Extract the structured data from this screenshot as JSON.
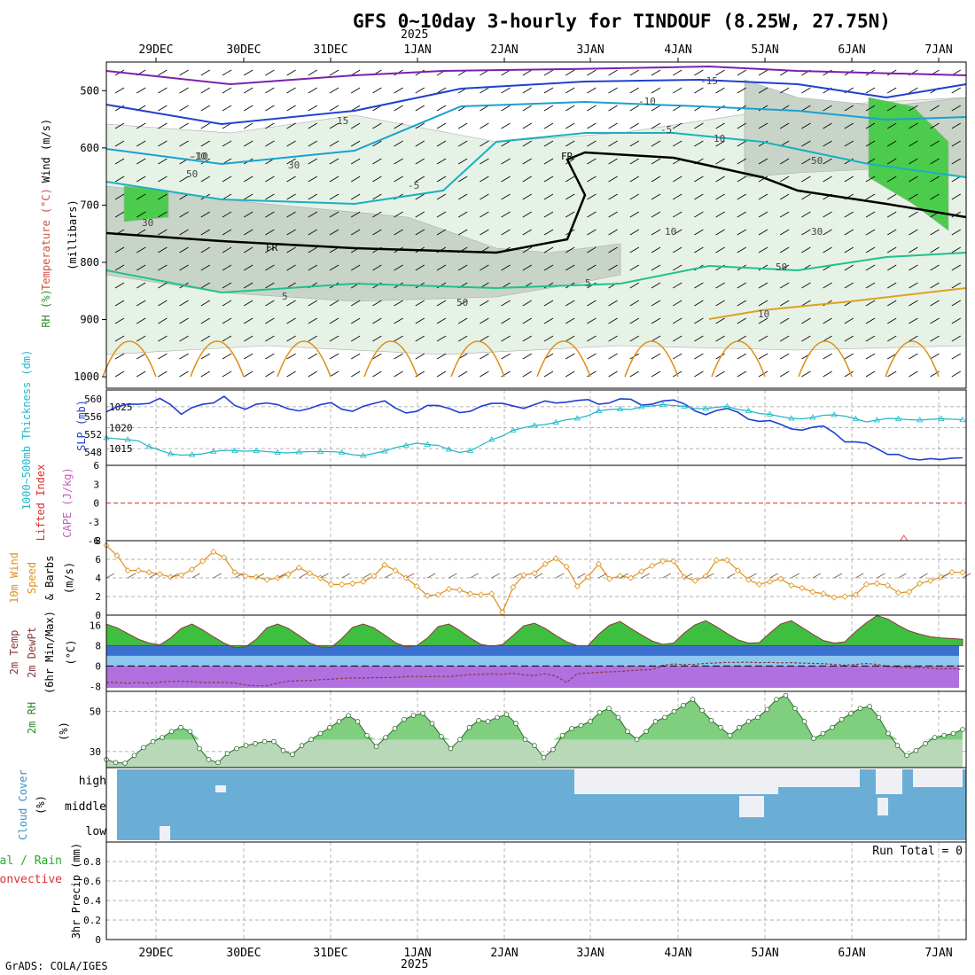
{
  "title": "GFS 0~10day 3-hourly for TINDOUF (8.25W, 27.75N)",
  "credit": "GrADS: COLA/IGES",
  "year_label": "2025",
  "dates": [
    "29DEC",
    "30DEC",
    "31DEC",
    "1JAN",
    "2JAN",
    "3JAN",
    "4JAN",
    "5JAN",
    "6JAN",
    "7JAN"
  ],
  "colors": {
    "slp": "#1f3fd0",
    "thickness": "#20b8c8",
    "wind_speed": "#e0901a",
    "temp_fill": "#3fbf3f",
    "dew_line": "#8b3a3a",
    "rh_fill": "#7fcf7f",
    "cloud": "#6aaed6",
    "grid": "#999999",
    "li": "#e03030"
  },
  "chart_data": [
    {
      "type": "contour",
      "id": "upper_air",
      "ylabel_parts": [
        "Wind (m/s)",
        "Temperature (°C)",
        "RH (%)",
        "(millibars)"
      ],
      "y_ticks": [
        500,
        600,
        700,
        800,
        900,
        1000
      ],
      "ylim": [
        450,
        1020
      ],
      "freezing_label": "FR",
      "contour_labels": [
        "-15",
        "15",
        "-10",
        "-10",
        "-5",
        "5",
        "-5",
        "5",
        "-10",
        "10",
        "30",
        "50",
        "50",
        "30",
        "10",
        "50",
        "30",
        "10",
        "50"
      ]
    },
    {
      "type": "line",
      "id": "slp_thickness",
      "ylabel_left": "1000~500mb Thickness (dm)",
      "ylabel_right": "SLP (mb)",
      "left_ticks": [
        548,
        552,
        556,
        560
      ],
      "right_ticks": [
        1015,
        1020,
        1025
      ],
      "series": [
        {
          "name": "SLP (mb)",
          "ylim": [
            1011,
            1029
          ],
          "values": [
            1023.8,
            1025,
            1025.6,
            1025.6,
            1025.8,
            1027,
            1025.5,
            1023.2,
            1024.8,
            1025.6,
            1025.9,
            1027.5,
            1025.3,
            1024.4,
            1025.6,
            1025.9,
            1025.5,
            1024.5,
            1024,
            1024.6,
            1025.5,
            1026,
            1024.4,
            1023.9,
            1025.1,
            1025.8,
            1026.4,
            1024.7,
            1023.5,
            1023.9,
            1025.3,
            1025.3,
            1024.6,
            1023.6,
            1023.9,
            1025.1,
            1025.8,
            1025.8,
            1025.2,
            1024.6,
            1025.5,
            1026.4,
            1025.9,
            1026.1,
            1026.5,
            1026.7,
            1025.6,
            1025.9,
            1026.9,
            1026.8,
            1025.4,
            1025.6,
            1026.4,
            1026.6,
            1025.7,
            1024,
            1023.1,
            1024.1,
            1024.6,
            1023.7,
            1022,
            1021.5,
            1021.7,
            1020.8,
            1019.7,
            1019.4,
            1020.1,
            1020.4,
            1018.8,
            1016.6,
            1016.6,
            1016.3,
            1015,
            1013.6,
            1013.6,
            1012.6,
            1012.3,
            1012.6,
            1012.4,
            1012.7,
            1012.8
          ]
        },
        {
          "name": "1000~500mb Thickness (dm)",
          "ylim": [
            545,
            562
          ],
          "values": [
            551.2,
            551,
            550.8,
            550.5,
            549.2,
            548.4,
            547.6,
            547.3,
            547.4,
            547.6,
            548.1,
            548.4,
            548.3,
            548.2,
            548.3,
            548.1,
            547.9,
            547.8,
            548,
            548.1,
            548.1,
            548.1,
            547.9,
            547.4,
            547.2,
            547.7,
            548.2,
            549,
            549.5,
            550,
            549.7,
            549.5,
            548.6,
            547.9,
            548.3,
            549.5,
            550.8,
            551.6,
            552.9,
            553.5,
            554,
            554.2,
            554.7,
            555.3,
            555.6,
            556.2,
            557.3,
            557.6,
            557.7,
            557.6,
            558.2,
            558.4,
            558.7,
            558.5,
            558.3,
            557.8,
            557.8,
            558.1,
            558.3,
            557.6,
            557.3,
            556.7,
            556.5,
            556,
            555.6,
            555.5,
            555.8,
            556.3,
            556.4,
            556.1,
            555.5,
            554.8,
            555.2,
            555.6,
            555.5,
            555.3,
            555.2,
            555.4,
            555.5,
            555.4,
            555.3
          ]
        }
      ]
    },
    {
      "type": "line",
      "id": "lifted_cape",
      "ylabel_left": "Lifted Index",
      "ylabel_right": "CAPE (J/kg)",
      "li_ticks": [
        "-6",
        "-3",
        "0",
        "3",
        "6"
      ],
      "ylim": [
        -6,
        6
      ],
      "li_values_zero": 0,
      "cape_spike": {
        "date_index": 8.6,
        "value": 8
      }
    },
    {
      "type": "line",
      "id": "wind10m",
      "ylabel": "10m Wind Speed & Barbs (m/s)",
      "ylabel_parts": [
        "10m Wind",
        "Speed",
        "& Barbs",
        "(m/s)"
      ],
      "ylim": [
        0,
        8
      ],
      "y_ticks": [
        0,
        2,
        4,
        6,
        8
      ],
      "values": [
        7.5,
        6.4,
        4.8,
        4.8,
        4.6,
        4.4,
        4.1,
        4.3,
        4.9,
        5.8,
        6.8,
        6.2,
        4.6,
        4.2,
        4.1,
        3.8,
        4,
        4.4,
        5.1,
        4.5,
        4,
        3.3,
        3.3,
        3.4,
        3.6,
        4.2,
        5.4,
        4.8,
        4,
        3.1,
        2.1,
        2.2,
        2.8,
        2.7,
        2.3,
        2.2,
        2.3,
        0.3,
        3,
        4.3,
        4.5,
        5.5,
        6.1,
        5.2,
        3.1,
        4.1,
        5.5,
        3.9,
        4.2,
        4,
        4.7,
        5.3,
        5.8,
        5.8,
        4.1,
        3.7,
        4.2,
        5.9,
        5.9,
        4.8,
        3.8,
        3.3,
        3.6,
        3.9,
        3.2,
        2.9,
        2.5,
        2.3,
        1.9,
        2,
        2.2,
        3.3,
        3.4,
        3.2,
        2.4,
        2.5,
        3.4,
        3.7,
        4.1,
        4.6,
        4.6
      ]
    },
    {
      "type": "area",
      "id": "temp_dew",
      "ylabel_parts": [
        "2m Temp",
        "2m DewPt",
        "(6hr Min/Max)",
        "(°C)"
      ],
      "ylim": [
        -10,
        20
      ],
      "y_ticks": [
        -8,
        0,
        8,
        16
      ],
      "temp": [
        16.5,
        15,
        12.8,
        10.5,
        9,
        8.3,
        11,
        14.8,
        16.5,
        14.2,
        11.5,
        9,
        7.2,
        7.5,
        10.5,
        15,
        16.5,
        14.8,
        12,
        9,
        7.5,
        7.3,
        10.8,
        15.2,
        16.5,
        15,
        12.2,
        9.2,
        7.5,
        8,
        11,
        15.5,
        16.5,
        14,
        11,
        8.5,
        7.8,
        8.4,
        12,
        15.8,
        16.8,
        14.8,
        12,
        9.5,
        8,
        8,
        12.5,
        16,
        17.5,
        14.8,
        12.2,
        9.8,
        8.5,
        9,
        13,
        16.2,
        17.8,
        15.5,
        12.8,
        10.3,
        9,
        9.2,
        13,
        16.5,
        17.8,
        15.2,
        12.5,
        10,
        9,
        9.5,
        13.5,
        17,
        19.8,
        18.5,
        16,
        13.8,
        12.5,
        11.5,
        11,
        10.8,
        10.5
      ],
      "dew": [
        -6.5,
        -6.5,
        -6.8,
        -6.5,
        -6.8,
        -6.3,
        -6.1,
        -6,
        -6.2,
        -6.5,
        -6.5,
        -6.5,
        -6.7,
        -7.5,
        -7.8,
        -7.8,
        -6.8,
        -6,
        -5.8,
        -5.7,
        -5.4,
        -5.2,
        -4.9,
        -4.7,
        -4.8,
        -4.6,
        -4.6,
        -4.5,
        -4.2,
        -4.1,
        -4.2,
        -4.1,
        -4.2,
        -3.8,
        -3.4,
        -3.3,
        -3.1,
        -3.3,
        -2.9,
        -3.5,
        -3.8,
        -3,
        -4,
        -6.5,
        -3,
        -2.8,
        -2.5,
        -2.3,
        -2.2,
        -1.8,
        -1.6,
        -1.4,
        0.2,
        0.8,
        0.5,
        0.7,
        1,
        1.2,
        1.4,
        1.4,
        1.5,
        1.3,
        1.4,
        1.2,
        1.3,
        1.1,
        1,
        0.9,
        0.6,
        0.3,
        0.6,
        1,
        0.6,
        -0.2,
        -0.5,
        -0.8,
        -0.6,
        -0.9,
        -1.2,
        -1,
        -1.4
      ]
    },
    {
      "type": "area",
      "id": "rh2m",
      "ylabel": "2m RH",
      "yunit": "(%)",
      "ylim": [
        22,
        60
      ],
      "y_ticks": [
        30,
        50
      ],
      "values": [
        26,
        24.5,
        24.2,
        28,
        32,
        35,
        37,
        40,
        42,
        40,
        31.5,
        26,
        24.5,
        29,
        31.5,
        33,
        34,
        35,
        35,
        30.5,
        28.5,
        33,
        36,
        39,
        42,
        45,
        48,
        45,
        38,
        32.5,
        37,
        41.5,
        46,
        48,
        49,
        44,
        37.5,
        31.5,
        36,
        42,
        45.5,
        45,
        47,
        48.5,
        44,
        36,
        33,
        27,
        31,
        38,
        41.5,
        43,
        45,
        49.5,
        51.5,
        47,
        40,
        36,
        40,
        45,
        47,
        50,
        53,
        56,
        50.5,
        45.5,
        42,
        38,
        42,
        45,
        47,
        51,
        56,
        58,
        51.5,
        45,
        36.5,
        39,
        42,
        46,
        49,
        51.5,
        52.5,
        47,
        39,
        33,
        28,
        30.5,
        34,
        37,
        38,
        39,
        41
      ]
    },
    {
      "type": "heatmap",
      "id": "cloud_cover",
      "ylabel": "Cloud Cover",
      "yunit": "(%)",
      "levels": [
        "high",
        "middle",
        "low"
      ]
    },
    {
      "type": "line",
      "id": "precip",
      "ylabel_parts": [
        "Total / Rain",
        "Convective",
        "3hr Precip (mm)"
      ],
      "run_total": "Run Total = 0",
      "ylim": [
        0,
        1
      ],
      "y_ticks": [
        "0",
        "0.2",
        "0.4",
        "0.6",
        "0.8"
      ]
    }
  ]
}
